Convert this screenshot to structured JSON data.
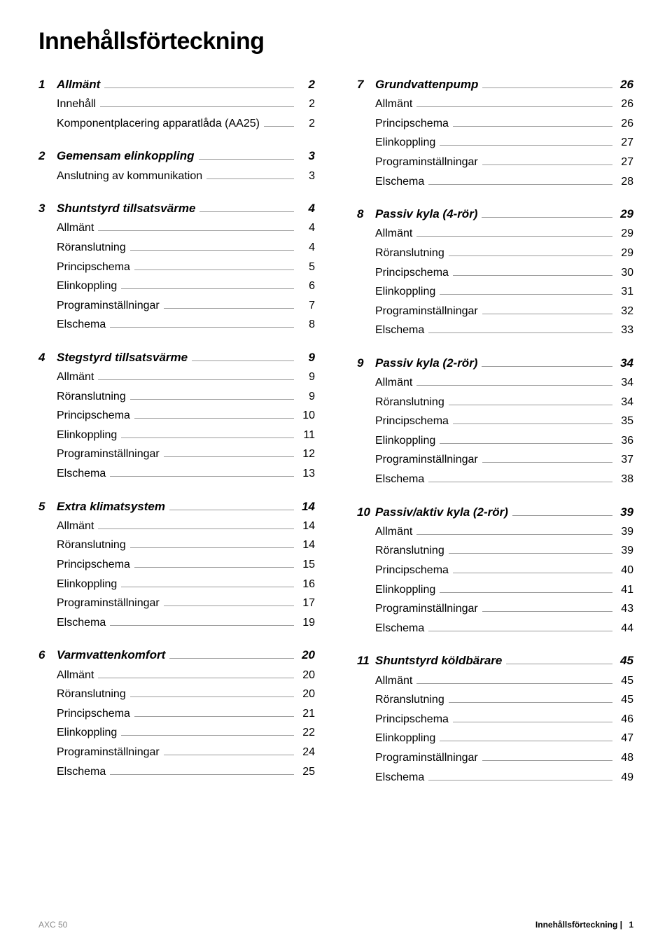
{
  "title": "Innehållsförteckning",
  "footer": {
    "left": "AXC 50",
    "right_label": "Innehållsförteckning |",
    "right_page": "1"
  },
  "left": [
    {
      "num": "1",
      "title": "Allmänt",
      "page": "2",
      "items": [
        {
          "label": "Innehåll",
          "page": "2"
        },
        {
          "label": "Komponentplacering apparatlåda (AA25)",
          "page": "2"
        }
      ]
    },
    {
      "num": "2",
      "title": "Gemensam elinkoppling",
      "page": "3",
      "items": [
        {
          "label": "Anslutning av kommunikation",
          "page": "3"
        }
      ]
    },
    {
      "num": "3",
      "title": "Shuntstyrd tillsatsvärme",
      "page": "4",
      "items": [
        {
          "label": "Allmänt",
          "page": "4"
        },
        {
          "label": "Röranslutning",
          "page": "4"
        },
        {
          "label": "Principschema",
          "page": "5"
        },
        {
          "label": "Elinkoppling",
          "page": "6"
        },
        {
          "label": "Programinställningar",
          "page": "7"
        },
        {
          "label": "Elschema",
          "page": "8"
        }
      ]
    },
    {
      "num": "4",
      "title": "Stegstyrd tillsatsvärme",
      "page": "9",
      "items": [
        {
          "label": "Allmänt",
          "page": "9"
        },
        {
          "label": "Röranslutning",
          "page": "9"
        },
        {
          "label": "Principschema",
          "page": "10"
        },
        {
          "label": "Elinkoppling",
          "page": "11"
        },
        {
          "label": "Programinställningar",
          "page": "12"
        },
        {
          "label": "Elschema",
          "page": "13"
        }
      ]
    },
    {
      "num": "5",
      "title": "Extra klimatsystem",
      "page": "14",
      "items": [
        {
          "label": "Allmänt",
          "page": "14"
        },
        {
          "label": "Röranslutning",
          "page": "14"
        },
        {
          "label": "Principschema",
          "page": "15"
        },
        {
          "label": "Elinkoppling",
          "page": "16"
        },
        {
          "label": "Programinställningar",
          "page": "17"
        },
        {
          "label": "Elschema",
          "page": "19"
        }
      ]
    },
    {
      "num": "6",
      "title": "Varmvattenkomfort",
      "page": "20",
      "items": [
        {
          "label": "Allmänt",
          "page": "20"
        },
        {
          "label": "Röranslutning",
          "page": "20"
        },
        {
          "label": "Principschema",
          "page": "21"
        },
        {
          "label": "Elinkoppling",
          "page": "22"
        },
        {
          "label": "Programinställningar",
          "page": "24"
        },
        {
          "label": "Elschema",
          "page": "25"
        }
      ]
    }
  ],
  "right": [
    {
      "num": "7",
      "title": "Grundvattenpump",
      "page": "26",
      "items": [
        {
          "label": "Allmänt",
          "page": "26"
        },
        {
          "label": "Principschema",
          "page": "26"
        },
        {
          "label": "Elinkoppling",
          "page": "27"
        },
        {
          "label": "Programinställningar",
          "page": "27"
        },
        {
          "label": "Elschema",
          "page": "28"
        }
      ]
    },
    {
      "num": "8",
      "title": "Passiv kyla (4-rör)",
      "page": "29",
      "items": [
        {
          "label": "Allmänt",
          "page": "29"
        },
        {
          "label": "Röranslutning",
          "page": "29"
        },
        {
          "label": "Principschema",
          "page": "30"
        },
        {
          "label": "Elinkoppling",
          "page": "31"
        },
        {
          "label": "Programinställningar",
          "page": "32"
        },
        {
          "label": "Elschema",
          "page": "33"
        }
      ]
    },
    {
      "num": "9",
      "title": "Passiv kyla (2-rör)",
      "page": "34",
      "items": [
        {
          "label": "Allmänt",
          "page": "34"
        },
        {
          "label": "Röranslutning",
          "page": "34"
        },
        {
          "label": "Principschema",
          "page": "35"
        },
        {
          "label": "Elinkoppling",
          "page": "36"
        },
        {
          "label": "Programinställningar",
          "page": "37"
        },
        {
          "label": "Elschema",
          "page": "38"
        }
      ]
    },
    {
      "num": "10",
      "title": "Passiv/aktiv kyla (2-rör)",
      "page": "39",
      "items": [
        {
          "label": "Allmänt",
          "page": "39"
        },
        {
          "label": "Röranslutning",
          "page": "39"
        },
        {
          "label": "Principschema",
          "page": "40"
        },
        {
          "label": "Elinkoppling",
          "page": "41"
        },
        {
          "label": "Programinställningar",
          "page": "43"
        },
        {
          "label": "Elschema",
          "page": "44"
        }
      ]
    },
    {
      "num": "11",
      "title": "Shuntstyrd köldbärare",
      "page": "45",
      "items": [
        {
          "label": "Allmänt",
          "page": "45"
        },
        {
          "label": "Röranslutning",
          "page": "45"
        },
        {
          "label": "Principschema",
          "page": "46"
        },
        {
          "label": "Elinkoppling",
          "page": "47"
        },
        {
          "label": "Programinställningar",
          "page": "48"
        },
        {
          "label": "Elschema",
          "page": "49"
        }
      ]
    }
  ]
}
